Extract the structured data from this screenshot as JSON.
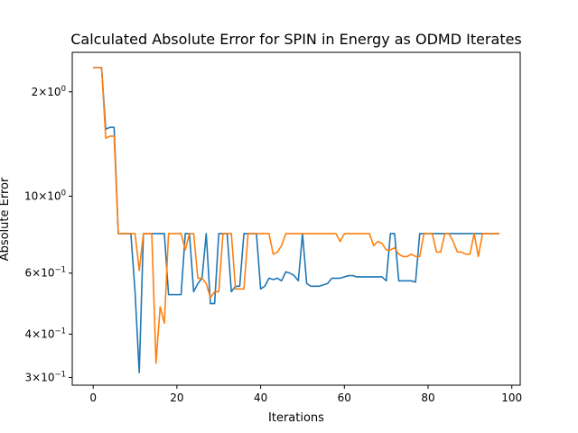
{
  "chart_data": {
    "type": "line",
    "title": "Calculated Absolute Error for SPIN in Energy as ODMD Iterates",
    "xlabel": "Iterations",
    "ylabel": "Absolute Error",
    "yscale": "log",
    "xlim": [
      -5,
      102
    ],
    "ylim": [
      0.285,
      2.6
    ],
    "grid": false,
    "xticks": [
      {
        "value": 0,
        "label": "0"
      },
      {
        "value": 20,
        "label": "20"
      },
      {
        "value": 40,
        "label": "40"
      },
      {
        "value": 60,
        "label": "60"
      },
      {
        "value": 80,
        "label": "80"
      },
      {
        "value": 100,
        "label": "100"
      }
    ],
    "yticks": [
      {
        "value": 0.3,
        "base": "3",
        "exp": "−1"
      },
      {
        "value": 0.4,
        "base": "4",
        "exp": "−1"
      },
      {
        "value": 0.6,
        "base": "6",
        "exp": "−1"
      },
      {
        "value": 1.0,
        "base": "10",
        "exp": "0"
      },
      {
        "value": 2.0,
        "base": "2",
        "exp": "0"
      }
    ],
    "series": [
      {
        "color": "#1f77b4",
        "points": [
          [
            0,
            2.35
          ],
          [
            2,
            2.35
          ],
          [
            3,
            1.56
          ],
          [
            4,
            1.58
          ],
          [
            5,
            1.58
          ],
          [
            6,
            0.78
          ],
          [
            7,
            0.78
          ],
          [
            8,
            0.78
          ],
          [
            9,
            0.78
          ],
          [
            10,
            0.53
          ],
          [
            11,
            0.31
          ],
          [
            12,
            0.78
          ],
          [
            13,
            0.78
          ],
          [
            14,
            0.78
          ],
          [
            15,
            0.78
          ],
          [
            16,
            0.78
          ],
          [
            17,
            0.78
          ],
          [
            18,
            0.52
          ],
          [
            19,
            0.52
          ],
          [
            20,
            0.52
          ],
          [
            21,
            0.52
          ],
          [
            22,
            0.78
          ],
          [
            23,
            0.78
          ],
          [
            24,
            0.53
          ],
          [
            25,
            0.56
          ],
          [
            26,
            0.58
          ],
          [
            27,
            0.78
          ],
          [
            28,
            0.49
          ],
          [
            29,
            0.49
          ],
          [
            30,
            0.78
          ],
          [
            31,
            0.78
          ],
          [
            32,
            0.78
          ],
          [
            33,
            0.53
          ],
          [
            34,
            0.55
          ],
          [
            35,
            0.55
          ],
          [
            36,
            0.78
          ],
          [
            37,
            0.78
          ],
          [
            38,
            0.78
          ],
          [
            39,
            0.78
          ],
          [
            40,
            0.54
          ],
          [
            41,
            0.55
          ],
          [
            42,
            0.58
          ],
          [
            43,
            0.575
          ],
          [
            44,
            0.58
          ],
          [
            45,
            0.57
          ],
          [
            46,
            0.605
          ],
          [
            47,
            0.6
          ],
          [
            48,
            0.59
          ],
          [
            49,
            0.57
          ],
          [
            50,
            0.78
          ],
          [
            51,
            0.56
          ],
          [
            52,
            0.55
          ],
          [
            53,
            0.55
          ],
          [
            54,
            0.55
          ],
          [
            55,
            0.555
          ],
          [
            56,
            0.56
          ],
          [
            57,
            0.58
          ],
          [
            58,
            0.58
          ],
          [
            59,
            0.58
          ],
          [
            60,
            0.585
          ],
          [
            61,
            0.59
          ],
          [
            62,
            0.59
          ],
          [
            63,
            0.585
          ],
          [
            64,
            0.585
          ],
          [
            65,
            0.585
          ],
          [
            66,
            0.585
          ],
          [
            67,
            0.585
          ],
          [
            68,
            0.585
          ],
          [
            69,
            0.585
          ],
          [
            70,
            0.57
          ],
          [
            71,
            0.78
          ],
          [
            72,
            0.78
          ],
          [
            73,
            0.57
          ],
          [
            74,
            0.57
          ],
          [
            75,
            0.57
          ],
          [
            76,
            0.57
          ],
          [
            77,
            0.565
          ],
          [
            78,
            0.78
          ],
          [
            79,
            0.78
          ],
          [
            80,
            0.78
          ],
          [
            82,
            0.78
          ],
          [
            85,
            0.78
          ],
          [
            88,
            0.78
          ],
          [
            91,
            0.78
          ],
          [
            94,
            0.78
          ],
          [
            97,
            0.78
          ]
        ]
      },
      {
        "color": "#ff7f0e",
        "points": [
          [
            0,
            2.35
          ],
          [
            2,
            2.35
          ],
          [
            3,
            1.47
          ],
          [
            4,
            1.49
          ],
          [
            5,
            1.49
          ],
          [
            6,
            0.78
          ],
          [
            7,
            0.78
          ],
          [
            8,
            0.78
          ],
          [
            9,
            0.78
          ],
          [
            10,
            0.78
          ],
          [
            11,
            0.61
          ],
          [
            12,
            0.78
          ],
          [
            13,
            0.78
          ],
          [
            14,
            0.78
          ],
          [
            15,
            0.33
          ],
          [
            16,
            0.48
          ],
          [
            17,
            0.43
          ],
          [
            18,
            0.78
          ],
          [
            19,
            0.78
          ],
          [
            20,
            0.78
          ],
          [
            21,
            0.78
          ],
          [
            22,
            0.7
          ],
          [
            23,
            0.78
          ],
          [
            24,
            0.78
          ],
          [
            25,
            0.58
          ],
          [
            26,
            0.58
          ],
          [
            27,
            0.56
          ],
          [
            28,
            0.51
          ],
          [
            29,
            0.53
          ],
          [
            30,
            0.53
          ],
          [
            31,
            0.78
          ],
          [
            32,
            0.78
          ],
          [
            33,
            0.78
          ],
          [
            34,
            0.54
          ],
          [
            35,
            0.54
          ],
          [
            36,
            0.54
          ],
          [
            37,
            0.78
          ],
          [
            38,
            0.78
          ],
          [
            40,
            0.78
          ],
          [
            42,
            0.78
          ],
          [
            43,
            0.68
          ],
          [
            44,
            0.69
          ],
          [
            45,
            0.72
          ],
          [
            46,
            0.78
          ],
          [
            48,
            0.78
          ],
          [
            50,
            0.78
          ],
          [
            52,
            0.78
          ],
          [
            54,
            0.78
          ],
          [
            56,
            0.78
          ],
          [
            58,
            0.78
          ],
          [
            59,
            0.74
          ],
          [
            60,
            0.78
          ],
          [
            62,
            0.78
          ],
          [
            64,
            0.78
          ],
          [
            66,
            0.78
          ],
          [
            67,
            0.72
          ],
          [
            68,
            0.74
          ],
          [
            69,
            0.73
          ],
          [
            70,
            0.7
          ],
          [
            71,
            0.7
          ],
          [
            72,
            0.71
          ],
          [
            73,
            0.68
          ],
          [
            74,
            0.67
          ],
          [
            75,
            0.67
          ],
          [
            76,
            0.68
          ],
          [
            77,
            0.67
          ],
          [
            78,
            0.67
          ],
          [
            79,
            0.78
          ],
          [
            80,
            0.78
          ],
          [
            81,
            0.78
          ],
          [
            82,
            0.69
          ],
          [
            83,
            0.69
          ],
          [
            84,
            0.78
          ],
          [
            85,
            0.78
          ],
          [
            86,
            0.74
          ],
          [
            87,
            0.69
          ],
          [
            88,
            0.69
          ],
          [
            89,
            0.68
          ],
          [
            90,
            0.68
          ],
          [
            91,
            0.78
          ],
          [
            92,
            0.67
          ],
          [
            93,
            0.78
          ],
          [
            94,
            0.78
          ],
          [
            95,
            0.78
          ],
          [
            96,
            0.78
          ],
          [
            97,
            0.78
          ]
        ]
      }
    ]
  }
}
